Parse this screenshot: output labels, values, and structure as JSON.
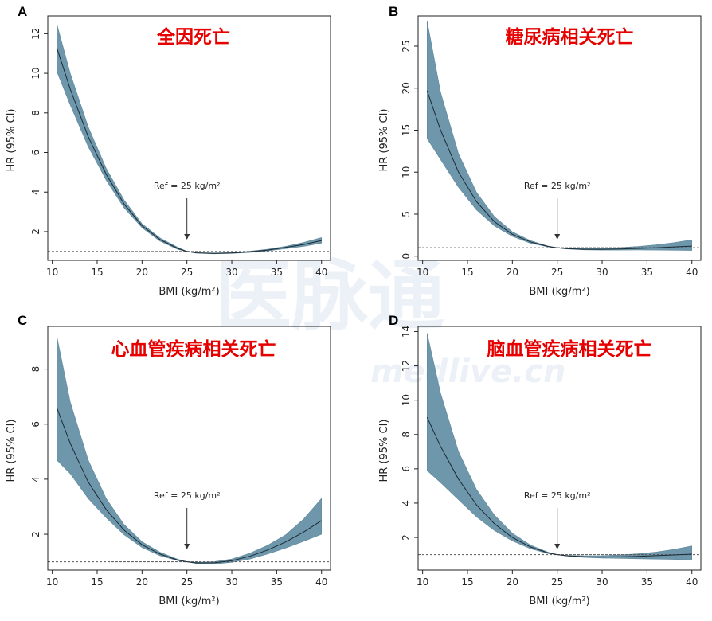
{
  "watermark": {
    "brand": "医脉通",
    "site": "medlive.cn"
  },
  "chart_data": [
    {
      "panel": "A",
      "title": "全因死亡",
      "type": "line",
      "xlabel": "BMI (kg/m²)",
      "ylabel": "HR (95% CI)",
      "xlim": [
        9.5,
        41
      ],
      "ylim": [
        0.55,
        12.9
      ],
      "xticks": [
        10,
        15,
        20,
        25,
        30,
        35,
        40
      ],
      "yticks": [
        2,
        4,
        6,
        8,
        10,
        12
      ],
      "reference_line": 1,
      "annotation": {
        "text": "Ref = 25 kg/m²",
        "x": 25
      },
      "x": [
        10.5,
        12,
        14,
        16,
        18,
        20,
        22,
        24,
        25,
        26,
        28,
        30,
        32,
        34,
        36,
        38,
        40
      ],
      "hr": [
        11.3,
        9.2,
        6.8,
        4.9,
        3.4,
        2.3,
        1.6,
        1.15,
        1.0,
        0.93,
        0.9,
        0.92,
        0.98,
        1.07,
        1.2,
        1.35,
        1.55
      ],
      "lower": [
        10.1,
        8.4,
        6.3,
        4.6,
        3.2,
        2.2,
        1.52,
        1.1,
        1.0,
        0.92,
        0.88,
        0.9,
        0.95,
        1.03,
        1.14,
        1.26,
        1.42
      ],
      "upper": [
        12.5,
        10.0,
        7.3,
        5.2,
        3.6,
        2.4,
        1.68,
        1.2,
        1.0,
        0.94,
        0.92,
        0.94,
        1.01,
        1.11,
        1.26,
        1.45,
        1.7
      ]
    },
    {
      "panel": "B",
      "title": "糖尿病相关死亡",
      "type": "line",
      "xlabel": "BMI (kg/m²)",
      "ylabel": "HR (95% CI)",
      "xlim": [
        9.5,
        41
      ],
      "ylim": [
        -0.5,
        28.6
      ],
      "xticks": [
        10,
        15,
        20,
        25,
        30,
        35,
        40
      ],
      "yticks": [
        0,
        5,
        10,
        15,
        20,
        25
      ],
      "reference_line": 1,
      "annotation": {
        "text": "Ref = 25 kg/m²",
        "x": 25
      },
      "x": [
        10.5,
        12,
        14,
        16,
        18,
        20,
        22,
        24,
        25,
        26,
        28,
        30,
        32,
        34,
        36,
        38,
        40
      ],
      "hr": [
        19.7,
        15.0,
        10.0,
        6.5,
        4.1,
        2.6,
        1.7,
        1.15,
        1.0,
        0.9,
        0.82,
        0.82,
        0.86,
        0.92,
        1.0,
        1.1,
        1.2
      ],
      "lower": [
        14.0,
        11.5,
        8.2,
        5.5,
        3.6,
        2.35,
        1.55,
        1.1,
        1.0,
        0.86,
        0.75,
        0.72,
        0.72,
        0.73,
        0.72,
        0.7,
        0.68
      ],
      "upper": [
        28.0,
        19.5,
        12.2,
        7.6,
        4.7,
        2.9,
        1.85,
        1.2,
        1.0,
        0.94,
        0.9,
        0.93,
        1.02,
        1.15,
        1.35,
        1.6,
        1.95
      ]
    },
    {
      "panel": "C",
      "title": "心血管疾病相关死亡",
      "type": "line",
      "xlabel": "BMI (kg/m²)",
      "ylabel": "HR (95% CI)",
      "xlim": [
        9.5,
        41
      ],
      "ylim": [
        0.7,
        9.55
      ],
      "xticks": [
        10,
        15,
        20,
        25,
        30,
        35,
        40
      ],
      "yticks": [
        2,
        4,
        6,
        8
      ],
      "reference_line": 1,
      "annotation": {
        "text": "Ref = 25 kg/m²",
        "x": 25
      },
      "x": [
        10.5,
        12,
        14,
        16,
        18,
        20,
        22,
        24,
        25,
        26,
        28,
        30,
        32,
        34,
        36,
        38,
        40
      ],
      "hr": [
        6.6,
        5.3,
        3.9,
        2.9,
        2.15,
        1.62,
        1.28,
        1.06,
        1.0,
        0.96,
        0.96,
        1.04,
        1.2,
        1.43,
        1.72,
        2.08,
        2.5
      ],
      "lower": [
        4.7,
        4.2,
        3.3,
        2.6,
        1.98,
        1.52,
        1.22,
        1.04,
        1.0,
        0.94,
        0.92,
        0.98,
        1.1,
        1.28,
        1.5,
        1.74,
        2.0
      ],
      "upper": [
        9.2,
        6.8,
        4.7,
        3.3,
        2.35,
        1.73,
        1.35,
        1.09,
        1.0,
        0.98,
        1.0,
        1.1,
        1.31,
        1.6,
        1.98,
        2.55,
        3.3
      ]
    },
    {
      "panel": "D",
      "title": "脑血管疾病相关死亡",
      "type": "line",
      "xlabel": "BMI (kg/m²)",
      "ylabel": "HR (95% CI)",
      "xlim": [
        9.5,
        41
      ],
      "ylim": [
        0.1,
        14.3
      ],
      "xticks": [
        10,
        15,
        20,
        25,
        30,
        35,
        40
      ],
      "yticks": [
        2,
        4,
        6,
        8,
        10,
        12,
        14
      ],
      "reference_line": 1,
      "annotation": {
        "text": "Ref = 25 kg/m²",
        "x": 25
      },
      "x": [
        10.5,
        12,
        14,
        16,
        18,
        20,
        22,
        24,
        25,
        26,
        28,
        30,
        32,
        34,
        36,
        38,
        40
      ],
      "hr": [
        9.0,
        7.3,
        5.4,
        3.9,
        2.8,
        2.0,
        1.45,
        1.1,
        1.0,
        0.94,
        0.88,
        0.86,
        0.87,
        0.9,
        0.94,
        0.98,
        1.03
      ],
      "lower": [
        5.9,
        5.2,
        4.2,
        3.2,
        2.4,
        1.8,
        1.35,
        1.06,
        1.0,
        0.92,
        0.84,
        0.8,
        0.78,
        0.76,
        0.74,
        0.72,
        0.69
      ],
      "upper": [
        13.9,
        10.4,
        7.0,
        4.8,
        3.3,
        2.25,
        1.56,
        1.14,
        1.0,
        0.96,
        0.93,
        0.94,
        0.98,
        1.05,
        1.15,
        1.3,
        1.5
      ]
    }
  ]
}
